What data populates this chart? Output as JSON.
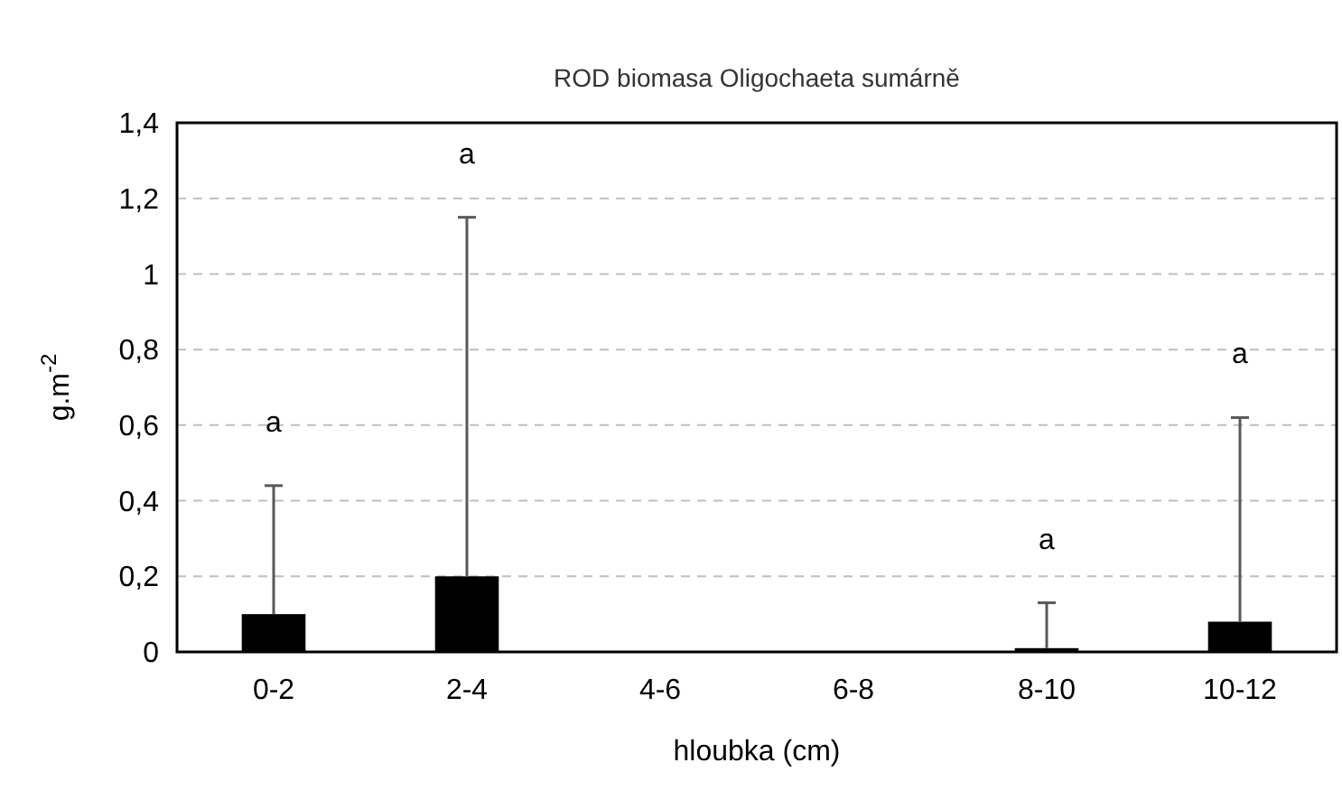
{
  "chart_data": {
    "type": "bar",
    "title": "ROD biomasa Oligochaeta sumárně",
    "xlabel": "hloubka (cm)",
    "ylabel": "g.m$^{-2}$",
    "categories": [
      "0-2",
      "2-4",
      "4-6",
      "6-8",
      "8-10",
      "10-12"
    ],
    "values": [
      0.1,
      0.2,
      0,
      0,
      0.01,
      0.08
    ],
    "color": "#000000",
    "errors": [
      [
        0.1,
        0.44
      ],
      [
        0.2,
        1.15
      ],
      null,
      null,
      [
        0.01,
        0.13
      ],
      [
        0.08,
        0.62
      ]
    ],
    "ylim": [
      0,
      1.4
    ],
    "yticks": [
      0,
      {
        "value": 0.2,
        "label": "0,2"
      },
      {
        "value": 0.4,
        "label": "0,4"
      },
      {
        "value": 0.6,
        "label": "0,6"
      },
      {
        "value": 0.8,
        "label": "0,8"
      },
      1,
      {
        "value": 1.2,
        "label": "1,2"
      },
      {
        "value": 1.4,
        "label": "1,4"
      }
    ],
    "grid": "y",
    "annotations": [
      "a",
      "a",
      "a",
      "a"
    ]
  }
}
